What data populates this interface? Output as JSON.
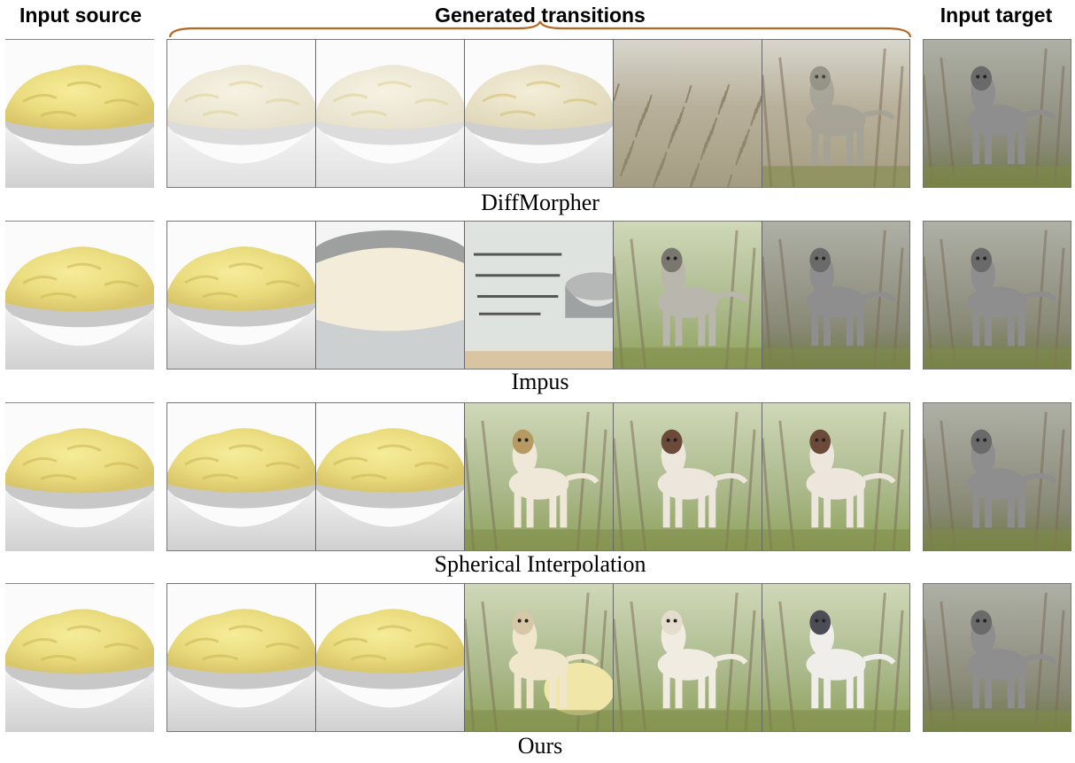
{
  "headers": {
    "source": "Input source",
    "generated": "Generated transitions",
    "target": "Input target"
  },
  "brace_color": "#b5651d",
  "rows": [
    {
      "method": "DiffMorpher",
      "cells": [
        "mashed-potato-bowl",
        "washed-out-potato",
        "washed-out-potato",
        "faded-potato-bowl",
        "dry-brush-field",
        "faded-wolfhound-in-brush"
      ]
    },
    {
      "method": "Impus",
      "cells": [
        "mashed-potato-bowl",
        "mashed-potato-bowl",
        "white-rice-in-grey-bowl",
        "inscribed-stone-slab-with-bowl",
        "grey-wolfhound-on-grass",
        "grey-wolfhound-in-forest"
      ]
    },
    {
      "method": "Spherical Interpolation",
      "cells": [
        "mashed-potato-bowl",
        "mashed-potato-bowl",
        "mashed-potato-bowl",
        "white-tan-dog-in-field",
        "white-brown-dog-in-field",
        "white-brown-dog-in-field"
      ]
    },
    {
      "method": "Ours",
      "cells": [
        "mashed-potato-bowl",
        "mashed-potato-bowl",
        "mashed-potato-bowl",
        "dog-with-potato-bowl",
        "white-dog-in-park",
        "white-grey-dog-in-park"
      ]
    }
  ],
  "target_image": "grey-wolfhound-in-forest"
}
